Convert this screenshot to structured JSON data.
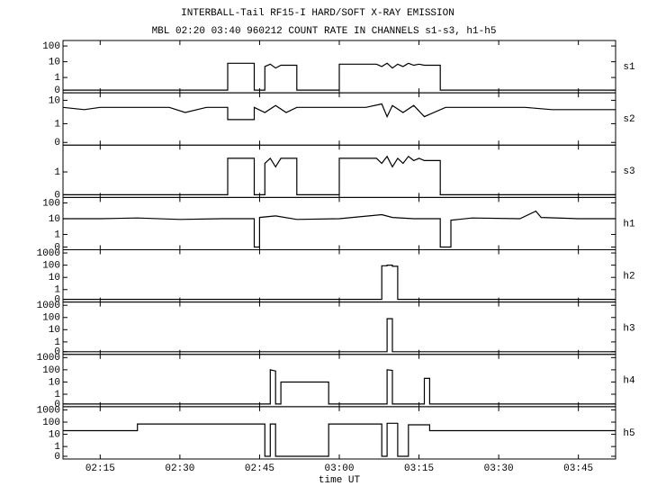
{
  "header": {
    "title": "INTERBALL-Tail RF15-I HARD/SOFT X-RAY EMISSION",
    "subtitle": "MBL 02:20 03:40 960212  COUNT RATE IN CHANNELS s1-s3, h1-h5"
  },
  "x_axis": {
    "label": "time UT",
    "lim": [
      "02:08",
      "03:52"
    ],
    "ticks": [
      "02:15",
      "02:30",
      "02:45",
      "03:00",
      "03:15",
      "03:30",
      "03:45"
    ]
  },
  "chart_data": [
    {
      "type": "line",
      "name": "s1",
      "log_scale": true,
      "color": "#000000",
      "ylim": [
        0,
        150
      ],
      "yticks": [
        0,
        1,
        10,
        100
      ],
      "x": [
        "02:08",
        "02:39",
        "02:39",
        "02:41",
        "02:43",
        "02:44",
        "02:44",
        "02:46",
        "02:46",
        "02:47",
        "02:48",
        "02:49",
        "02:50",
        "02:52",
        "02:52",
        "03:00",
        "03:00",
        "03:04",
        "03:07",
        "03:08",
        "03:09",
        "03:10",
        "03:11",
        "03:12",
        "03:13",
        "03:14",
        "03:15",
        "03:16",
        "03:19",
        "03:19",
        "03:52"
      ],
      "values": [
        0,
        0,
        8,
        8,
        8,
        8,
        0,
        0,
        5,
        7,
        4,
        6,
        6,
        6,
        0,
        0,
        7,
        7,
        7,
        5,
        8,
        4,
        7,
        5,
        8,
        6,
        7,
        6,
        6,
        0,
        0
      ]
    },
    {
      "type": "line",
      "name": "s2",
      "log_scale": true,
      "color": "#000000",
      "ylim": [
        0,
        16
      ],
      "yticks": [
        0,
        1,
        10
      ],
      "x": [
        "02:08",
        "02:12",
        "02:15",
        "02:22",
        "02:28",
        "02:31",
        "02:35",
        "02:39",
        "02:39",
        "02:44",
        "02:44",
        "02:46",
        "02:48",
        "02:50",
        "02:52",
        "02:58",
        "03:00",
        "03:05",
        "03:08",
        "03:09",
        "03:10",
        "03:12",
        "03:14",
        "03:16",
        "03:20",
        "03:25",
        "03:30",
        "03:35",
        "03:40",
        "03:52"
      ],
      "values": [
        5,
        4,
        5,
        5,
        5,
        3,
        5,
        5,
        1.5,
        1.5,
        5,
        3,
        6,
        3,
        5,
        5,
        5,
        5,
        7,
        2,
        6,
        3,
        6,
        2,
        5,
        5,
        5,
        5,
        4,
        4
      ]
    },
    {
      "type": "line",
      "name": "s3",
      "log_scale": true,
      "color": "#000000",
      "ylim": [
        0,
        7
      ],
      "yticks": [
        0,
        1
      ],
      "x": [
        "02:08",
        "02:39",
        "02:39",
        "02:41",
        "02:43",
        "02:44",
        "02:44",
        "02:46",
        "02:46",
        "02:47",
        "02:48",
        "02:49",
        "02:50",
        "02:52",
        "02:52",
        "03:00",
        "03:00",
        "03:04",
        "03:07",
        "03:08",
        "03:09",
        "03:10",
        "03:11",
        "03:12",
        "03:13",
        "03:14",
        "03:15",
        "03:16",
        "03:19",
        "03:19",
        "03:52"
      ],
      "values": [
        0,
        0,
        3,
        3,
        3,
        3,
        0,
        0,
        2,
        3,
        1.5,
        3,
        3,
        3,
        0,
        0,
        3,
        3,
        3,
        2,
        3.5,
        1.5,
        3,
        2,
        3.5,
        2.5,
        3,
        2.5,
        2.5,
        0,
        0
      ]
    },
    {
      "type": "line",
      "name": "h1",
      "log_scale": true,
      "color": "#000000",
      "ylim": [
        0,
        150
      ],
      "yticks": [
        0,
        1,
        10,
        100
      ],
      "x": [
        "02:08",
        "02:15",
        "02:22",
        "02:30",
        "02:38",
        "02:44",
        "02:44",
        "02:45",
        "02:45",
        "02:48",
        "02:52",
        "03:00",
        "03:08",
        "03:10",
        "03:14",
        "03:19",
        "03:19",
        "03:21",
        "03:21",
        "03:25",
        "03:34",
        "03:37",
        "03:38",
        "03:45",
        "03:52"
      ],
      "values": [
        10,
        10,
        11,
        9,
        10,
        10,
        0,
        0,
        12,
        15,
        9,
        10,
        18,
        12,
        10,
        10,
        0,
        0,
        8,
        11,
        10,
        30,
        12,
        10,
        10
      ]
    },
    {
      "type": "line",
      "name": "h2",
      "log_scale": true,
      "color": "#000000",
      "ylim": [
        0,
        1100
      ],
      "yticks": [
        0,
        1,
        10,
        100,
        1000
      ],
      "x": [
        "02:08",
        "03:08",
        "03:08",
        "03:09",
        "03:09",
        "03:10",
        "03:10",
        "03:11",
        "03:11",
        "03:52"
      ],
      "values": [
        0,
        0,
        90,
        90,
        100,
        100,
        80,
        80,
        0,
        0
      ]
    },
    {
      "type": "line",
      "name": "h3",
      "log_scale": true,
      "color": "#000000",
      "ylim": [
        0,
        1100
      ],
      "yticks": [
        0,
        1,
        10,
        100,
        1000
      ],
      "x": [
        "02:08",
        "03:09",
        "03:09",
        "03:10",
        "03:10",
        "03:52"
      ],
      "values": [
        0,
        0,
        80,
        80,
        0,
        0
      ]
    },
    {
      "type": "line",
      "name": "h4",
      "log_scale": true,
      "color": "#000000",
      "ylim": [
        0,
        1100
      ],
      "yticks": [
        0,
        1,
        10,
        100,
        1000
      ],
      "x": [
        "02:08",
        "02:47",
        "02:47",
        "02:48",
        "02:48",
        "02:49",
        "02:49",
        "02:58",
        "02:58",
        "03:09",
        "03:09",
        "03:10",
        "03:10",
        "03:16",
        "03:16",
        "03:17",
        "03:17",
        "03:52"
      ],
      "values": [
        0,
        0,
        100,
        80,
        0,
        0,
        10,
        10,
        0,
        0,
        100,
        90,
        0,
        0,
        20,
        20,
        0,
        0
      ]
    },
    {
      "type": "line",
      "name": "h5",
      "log_scale": true,
      "color": "#000000",
      "ylim": [
        0,
        1100
      ],
      "yticks": [
        0,
        1,
        10,
        100,
        1000
      ],
      "x": [
        "02:08",
        "02:22",
        "02:22",
        "02:46",
        "02:46",
        "02:47",
        "02:47",
        "02:48",
        "02:48",
        "02:58",
        "02:58",
        "03:08",
        "03:08",
        "03:09",
        "03:09",
        "03:11",
        "03:11",
        "03:13",
        "03:13",
        "03:17",
        "03:17",
        "03:52"
      ],
      "values": [
        20,
        20,
        70,
        70,
        0,
        0,
        70,
        70,
        0,
        0,
        70,
        70,
        0,
        0,
        80,
        80,
        0,
        0,
        60,
        60,
        20,
        20
      ]
    }
  ]
}
